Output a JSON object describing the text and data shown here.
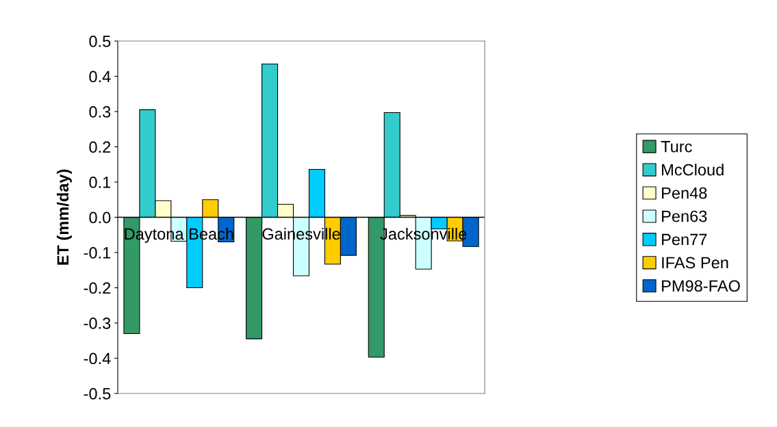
{
  "chart_data": {
    "type": "bar",
    "ylabel": "ET (mm/day)",
    "categories": [
      "Daytona Beach",
      "Gainesville",
      "Jacksonville"
    ],
    "series": [
      {
        "name": "Turc",
        "color": "#339966",
        "values": [
          -0.33,
          -0.345,
          -0.397
        ]
      },
      {
        "name": "McCloud",
        "color": "#33cccc",
        "values": [
          0.305,
          0.435,
          0.297
        ]
      },
      {
        "name": "Pen48",
        "color": "#ffffcc",
        "values": [
          0.047,
          0.037,
          0.005
        ]
      },
      {
        "name": "Pen63",
        "color": "#ccffff",
        "values": [
          -0.068,
          -0.166,
          -0.147
        ]
      },
      {
        "name": "Pen77",
        "color": "#00ccff",
        "values": [
          -0.2,
          0.136,
          -0.033
        ]
      },
      {
        "name": "IFAS Pen",
        "color": "#ffcc00",
        "values": [
          0.05,
          -0.133,
          -0.067
        ]
      },
      {
        "name": "PM98-FAO",
        "color": "#0066cc",
        "values": [
          -0.07,
          -0.108,
          -0.083
        ]
      }
    ],
    "ylim": [
      -0.5,
      0.5
    ],
    "yticks": [
      -0.5,
      -0.4,
      -0.3,
      -0.2,
      -0.1,
      {
        "value": 0,
        "label": "0.0"
      },
      0.1,
      0.2,
      0.3,
      0.4,
      0.5
    ],
    "grid": false,
    "legend": "right"
  }
}
